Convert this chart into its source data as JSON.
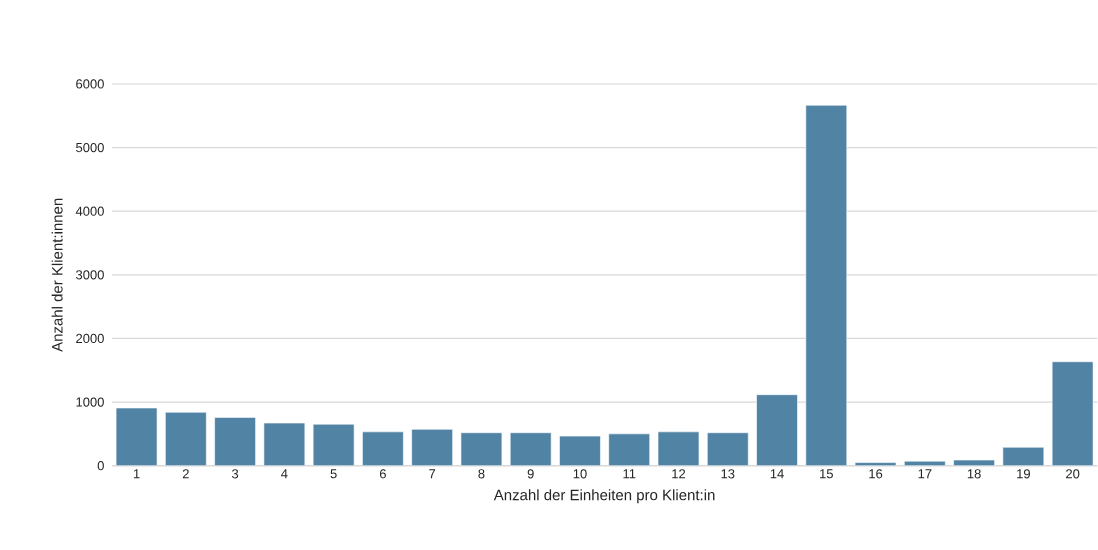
{
  "chart_data": {
    "type": "bar",
    "xlabel": "Anzahl der Einheiten pro Klient:in",
    "ylabel": "Anzahl der Klient:innen",
    "categories": [
      "1",
      "2",
      "3",
      "4",
      "5",
      "6",
      "7",
      "8",
      "9",
      "10",
      "11",
      "12",
      "13",
      "14",
      "15",
      "16",
      "17",
      "18",
      "19",
      "20"
    ],
    "values": [
      907,
      840,
      759,
      670,
      652,
      532,
      572,
      518,
      518,
      465,
      500,
      532,
      518,
      1116,
      5665,
      49,
      71,
      89,
      290,
      1634
    ],
    "color": "#5083a4",
    "ylim": [
      0,
      6000
    ],
    "yticks": [
      0,
      1000,
      2000,
      3000,
      4000,
      5000,
      6000
    ],
    "grid": "y"
  }
}
